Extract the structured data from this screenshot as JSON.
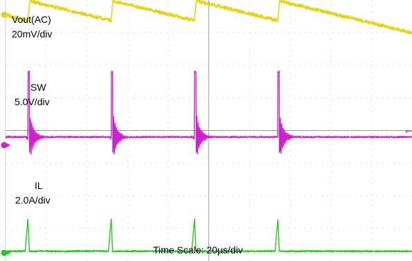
{
  "chart_data": {
    "type": "line",
    "title": "",
    "xlabel": "",
    "ylabel": "",
    "grid": true,
    "x_divisions": 10,
    "y_divisions": 8,
    "time_scale_label": "Time Scale: 20µs/div",
    "switching_period_div": 2.05,
    "series": [
      {
        "name": "Vout(AC)",
        "scale_label": "20mV/div",
        "color": "#e6d319",
        "shape": "sawtooth ripple",
        "zero_level_div": 7.55,
        "ripple_peak_to_peak_div": 0.6,
        "step_times_div": [
          0.55,
          2.6,
          4.65,
          6.7
        ]
      },
      {
        "name": "SW",
        "scale_label": "5.0V/div",
        "color": "#cc22cc",
        "shape": "switching pulse with decaying ringing",
        "baseline_div": 3.8,
        "spike_peak_div": 5.8,
        "pulse_times_div": [
          0.55,
          2.6,
          4.65,
          6.7
        ],
        "marker_right": "←"
      },
      {
        "name": "IL",
        "scale_label": "2.0A/div",
        "color": "#22c922",
        "shape": "narrow current pulses",
        "baseline_div": 0.3,
        "pulse_height_div": 1.0,
        "pulse_times_div": [
          0.55,
          2.6,
          4.65,
          6.7
        ]
      }
    ]
  }
}
